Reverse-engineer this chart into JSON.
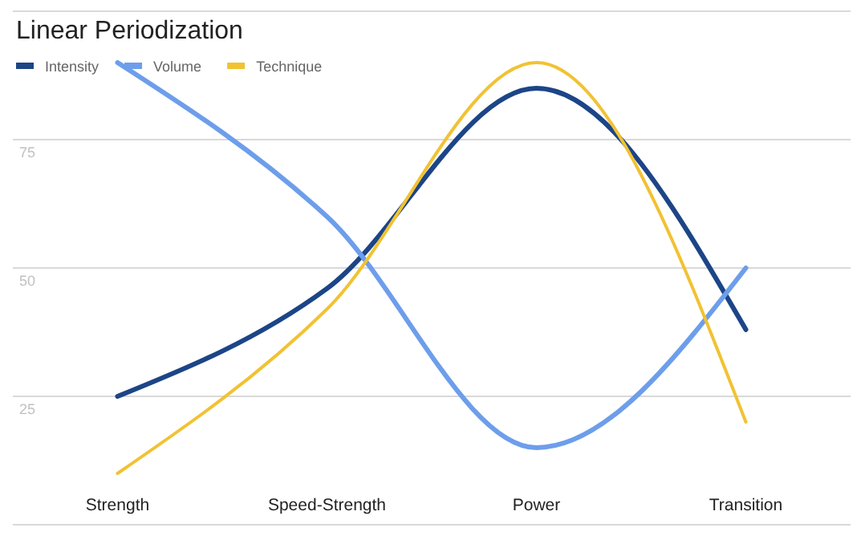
{
  "chart_data": {
    "type": "line",
    "title": "Linear Periodization",
    "categories": [
      "Strength",
      "Speed-Strength",
      "Power",
      "Transition"
    ],
    "series": [
      {
        "name": "Intensity",
        "color": "#1c4587",
        "values": [
          25,
          46,
          85,
          38
        ]
      },
      {
        "name": "Volume",
        "color": "#6d9eeb",
        "values": [
          90,
          60,
          15,
          50
        ]
      },
      {
        "name": "Technique",
        "color": "#f1c232",
        "values": [
          10,
          42,
          90,
          20
        ]
      }
    ],
    "ylim": [
      0,
      100
    ],
    "yticks": [
      {
        "value": 0,
        "label": null
      },
      25,
      50,
      75,
      {
        "value": 100,
        "label": null
      }
    ],
    "grid": "y",
    "legend": "top left",
    "marker": "none",
    "line_style": "solid"
  }
}
